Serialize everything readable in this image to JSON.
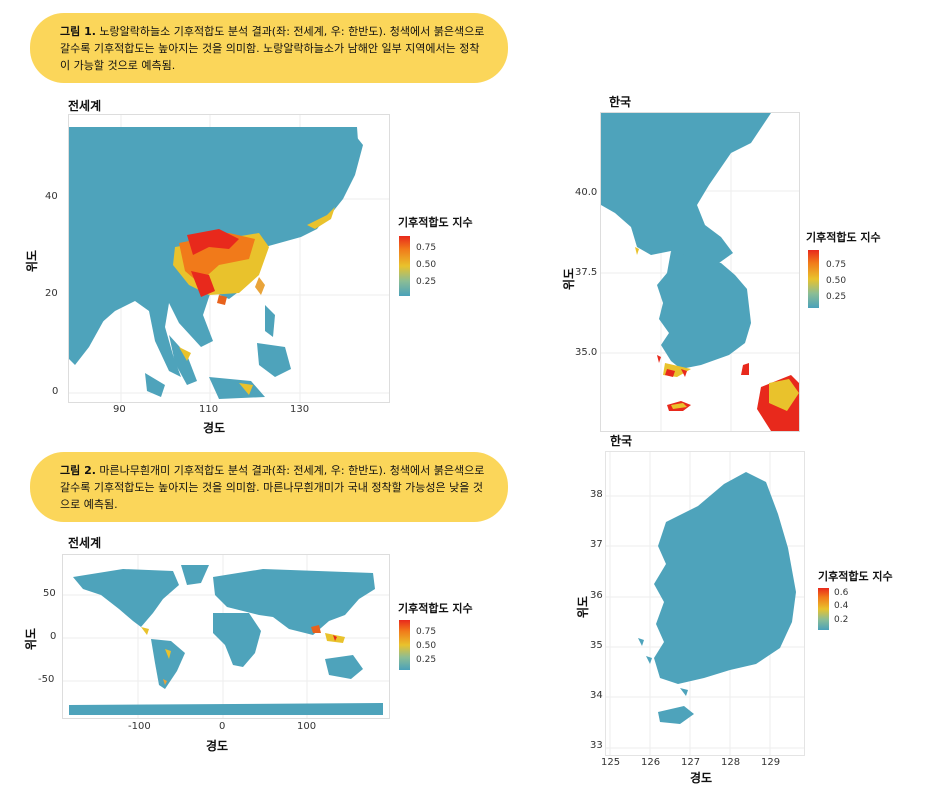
{
  "figure1": {
    "caption_bold": "그림 1.",
    "caption_text": " 노랑알락하늘소 기후적합도 분석 결과(좌: 전세계, 우: 한반도). 청색에서 붉은색으로 갈수록 기후적합도는 높아지는 것을 의미함. 노랑알락하늘소가 남해안 일부 지역에서는 정착이 가능할 것으로 예측됨."
  },
  "figure2": {
    "caption_bold": "그림 2.",
    "caption_text": " 마른나무흰개미 기후적합도 분석 결과(좌: 전세계, 우: 한반도). 청색에서 붉은색으로 갈수록 기후적합도는 높아지는 것을 의미함. 마른나무흰개미가 국내 정착할 가능성은 낮을 것으로 예측됨."
  },
  "colors": {
    "low": "#4aa1ba",
    "mid": "#e9c22c",
    "high": "#e8291c",
    "caption_bg": "#fbd65a"
  },
  "chart_data": [
    {
      "type": "heatmap",
      "title": "전세계",
      "xlabel": "경도",
      "ylabel": "위도",
      "xticks": [
        "90",
        "110",
        "130"
      ],
      "yticks": [
        "40",
        "20",
        "0"
      ],
      "xlim": [
        78,
        148
      ],
      "ylim": [
        0,
        53
      ],
      "legend_title": "기후적합도 지수",
      "legend_ticks": [
        "0.75",
        "0.50",
        "0.25"
      ],
      "legend_placement": "right"
    },
    {
      "type": "heatmap",
      "title": "한국",
      "xlabel": "",
      "ylabel": "위도",
      "yticks": [
        "40.0",
        "37.5",
        "35.0"
      ],
      "ylim": [
        33,
        43
      ],
      "legend_title": "기후적합도 지수",
      "legend_ticks": [
        "0.75",
        "0.50",
        "0.25"
      ],
      "legend_placement": "right"
    },
    {
      "type": "heatmap",
      "title": "전세계",
      "xlabel": "경도",
      "ylabel": "위도",
      "xticks": [
        "-100",
        "0",
        "100"
      ],
      "yticks": [
        "50",
        "0",
        "-50"
      ],
      "xlim": [
        -180,
        180
      ],
      "ylim": [
        -90,
        85
      ],
      "legend_title": "기후적합도 지수",
      "legend_ticks": [
        "0.75",
        "0.50",
        "0.25"
      ],
      "legend_placement": "right"
    },
    {
      "type": "heatmap",
      "title": "한국",
      "xlabel": "경도",
      "ylabel": "위도",
      "xticks": [
        "125",
        "126",
        "127",
        "128",
        "129"
      ],
      "yticks": [
        "38",
        "37",
        "36",
        "35",
        "34",
        "33"
      ],
      "xlim": [
        125,
        130
      ],
      "ylim": [
        33,
        38.7
      ],
      "legend_title": "기후적합도 지수",
      "legend_ticks": [
        "0.6",
        "0.4",
        "0.2"
      ],
      "legend_placement": "right"
    }
  ]
}
